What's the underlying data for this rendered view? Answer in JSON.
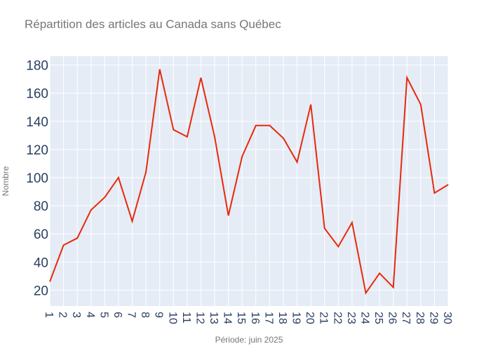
{
  "chart_data": {
    "type": "line",
    "title": "Répartition des articles au Canada sans Québec",
    "xlabel": "Période: juin 2025",
    "ylabel": "Nombre",
    "x": [
      "1",
      "2",
      "3",
      "4",
      "5",
      "6",
      "7",
      "8",
      "9",
      "10",
      "11",
      "12",
      "13",
      "14",
      "15",
      "16",
      "17",
      "18",
      "19",
      "20",
      "21",
      "22",
      "23",
      "24",
      "25",
      "26",
      "27",
      "28",
      "29",
      "30"
    ],
    "series": [
      {
        "values": [
          26,
          52,
          57,
          77,
          86,
          100,
          69,
          104,
          177,
          134,
          129,
          171,
          129,
          73,
          115,
          137,
          137,
          128,
          111,
          152,
          64,
          51,
          68,
          18,
          32,
          22,
          171,
          152,
          89,
          95
        ]
      }
    ],
    "yticks": [
      20,
      40,
      60,
      80,
      100,
      120,
      140,
      160,
      180
    ],
    "ylim": [
      8.7,
      186.3
    ],
    "grid": true,
    "colors": {
      "line": "#e8290b",
      "plot_bg": "#e5ecf6",
      "grid": "#ffffff"
    }
  }
}
